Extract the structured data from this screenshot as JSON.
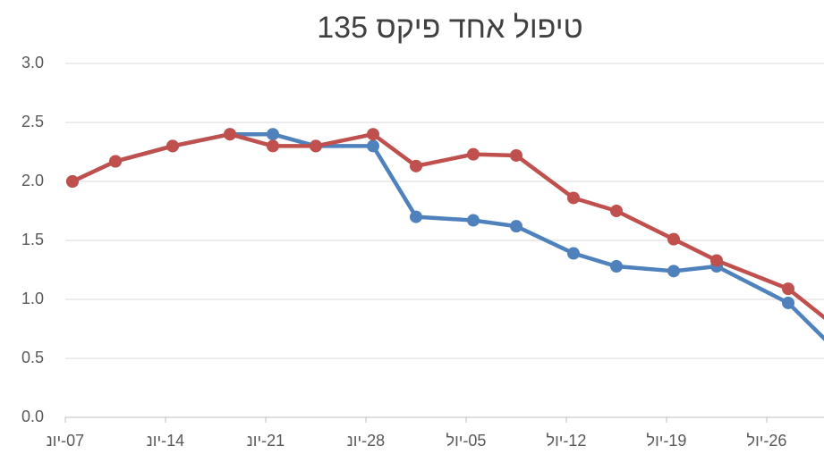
{
  "chart_data": {
    "type": "line",
    "title": "טיפול אחד פיקס 135",
    "x": [
      "06-07",
      "06-10",
      "06-14",
      "06-18",
      "06-21",
      "06-24",
      "06-28",
      "07-01",
      "07-05",
      "07-08",
      "07-12",
      "07-15",
      "07-19",
      "07-22",
      "07-27",
      "07-30"
    ],
    "series": [
      {
        "color": "#4f81bd",
        "values": [
          2.0,
          2.17,
          2.3,
          2.4,
          2.4,
          2.3,
          2.3,
          1.7,
          1.67,
          1.62,
          1.39,
          1.28,
          1.24,
          1.28,
          0.97,
          0.61
        ]
      },
      {
        "color": "#c0504d",
        "values": [
          2.0,
          2.17,
          2.3,
          2.4,
          2.3,
          2.3,
          2.4,
          2.13,
          2.23,
          2.22,
          1.86,
          1.75,
          1.51,
          1.33,
          1.09,
          0.8
        ]
      }
    ],
    "xlim": [
      "06-07",
      "07-29"
    ],
    "xticks": [
      {
        "value": "06-07",
        "label": "07-יונ"
      },
      {
        "value": "06-14",
        "label": "14-יונ"
      },
      {
        "value": "06-21",
        "label": "21-יונ"
      },
      {
        "value": "06-28",
        "label": "28-יונ"
      },
      {
        "value": "07-05",
        "label": "05-יול"
      },
      {
        "value": "07-12",
        "label": "12-יול"
      },
      {
        "value": "07-19",
        "label": "19-יול"
      },
      {
        "value": "07-26",
        "label": "26-יול"
      }
    ],
    "ylim": [
      0,
      3
    ],
    "yticks": [
      {
        "value": 0,
        "label": "0.0"
      },
      0.5,
      {
        "value": 1,
        "label": "1.0"
      },
      1.5,
      {
        "value": 2,
        "label": "2.0"
      },
      2.5,
      {
        "value": 3,
        "label": "3.0"
      }
    ],
    "grid": true
  }
}
